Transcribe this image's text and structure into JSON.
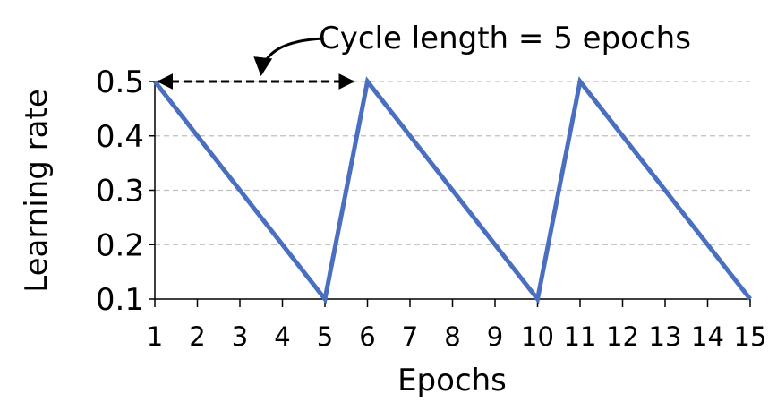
{
  "chart_data": {
    "type": "line",
    "title": "",
    "xlabel": "Epochs",
    "ylabel": "Learning rate",
    "x": [
      1,
      5,
      6,
      10,
      11,
      15
    ],
    "series": [
      {
        "values": [
          0.5,
          0.1,
          0.5,
          0.1,
          0.5,
          0.1
        ],
        "color": "#4a6fc1"
      }
    ],
    "x_ticks": [
      "1",
      "2",
      "3",
      "4",
      "5",
      "6",
      "7",
      "8",
      "9",
      "10",
      "11",
      "12",
      "13",
      "14",
      "15"
    ],
    "y_ticks": [
      "0.1",
      "0.2",
      "0.3",
      "0.4",
      "0.5"
    ],
    "xlim": [
      1,
      15
    ],
    "ylim": [
      0.1,
      0.5
    ],
    "grid": true,
    "grid_style": "dashed horizontal",
    "annotations": [
      {
        "text": "Cycle length = 5  epochs",
        "arrow_from_x": 1,
        "arrow_to_x": 6,
        "y": 0.5
      }
    ]
  },
  "colors": {
    "line": "#4a6fc1",
    "grid": "#bfbfbf",
    "axis": "#000000"
  }
}
